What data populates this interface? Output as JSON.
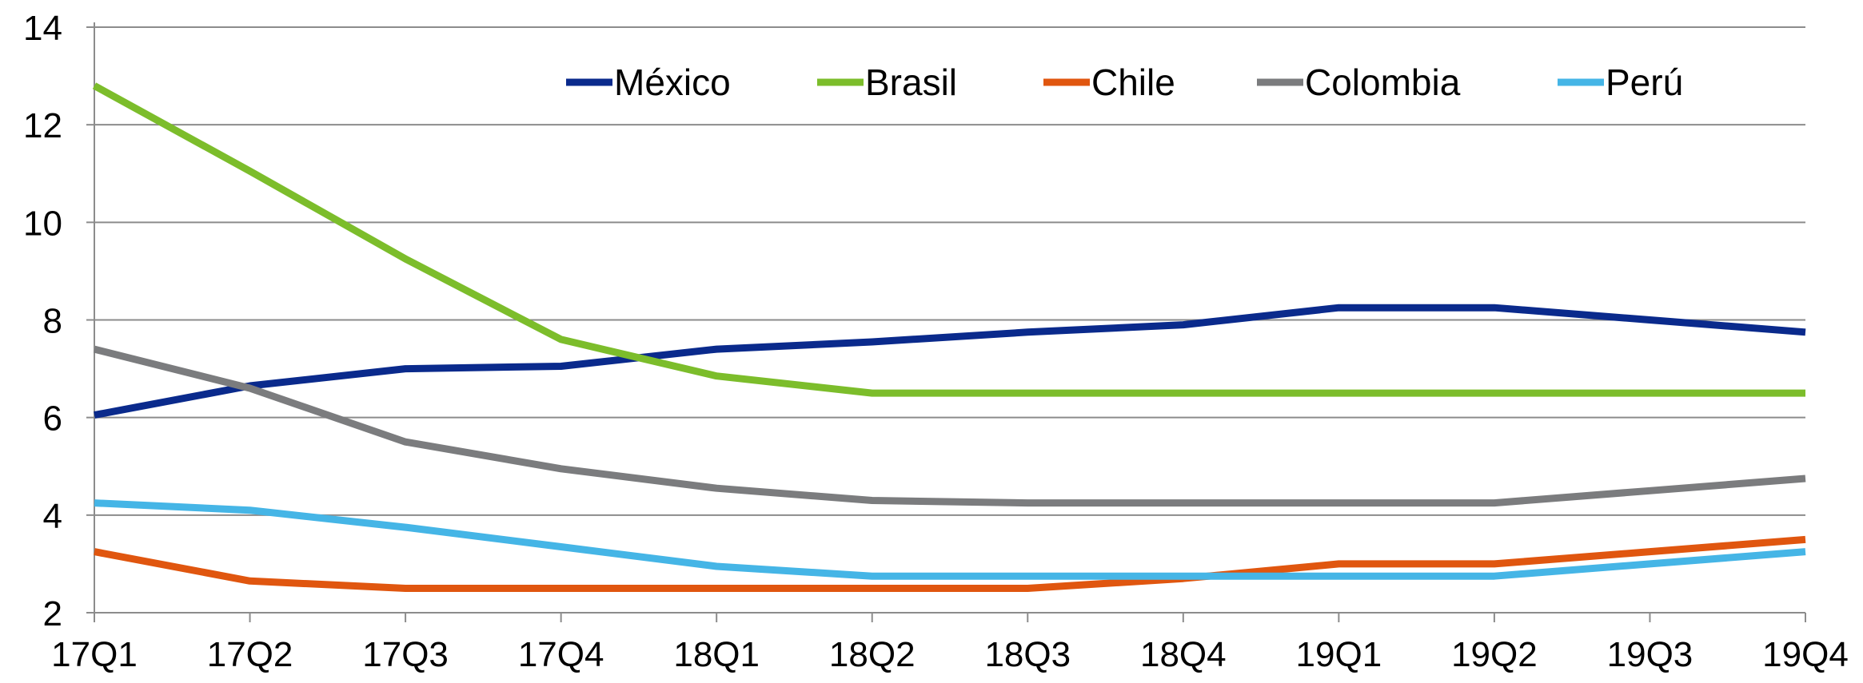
{
  "chart_data": {
    "type": "line",
    "title": "",
    "xlabel": "",
    "ylabel": "",
    "categories": [
      "17Q1",
      "17Q2",
      "17Q3",
      "17Q4",
      "18Q1",
      "18Q2",
      "18Q3",
      "18Q4",
      "19Q1",
      "19Q2",
      "19Q3",
      "19Q4"
    ],
    "ylim": [
      2,
      14
    ],
    "yticks": [
      2,
      4,
      6,
      8,
      10,
      12,
      14
    ],
    "grid": true,
    "legend_position": "top",
    "series": [
      {
        "name": "México",
        "color": "#0a2a8c",
        "values": [
          6.05,
          6.65,
          7.0,
          7.05,
          7.4,
          7.55,
          7.75,
          7.9,
          8.25,
          8.25,
          8.0,
          7.75
        ]
      },
      {
        "name": "Brasil",
        "color": "#7cbd2b",
        "values": [
          12.8,
          11.05,
          9.25,
          7.6,
          6.85,
          6.5,
          6.5,
          6.5,
          6.5,
          6.5,
          6.5,
          6.5
        ]
      },
      {
        "name": "Chile",
        "color": "#e0560f",
        "values": [
          3.25,
          2.65,
          2.5,
          2.5,
          2.5,
          2.5,
          2.5,
          2.7,
          3.0,
          3.0,
          3.25,
          3.5
        ]
      },
      {
        "name": "Colombia",
        "color": "#7b7c7e",
        "values": [
          7.4,
          6.6,
          5.5,
          4.95,
          4.55,
          4.3,
          4.25,
          4.25,
          4.25,
          4.25,
          4.5,
          4.75
        ]
      },
      {
        "name": "Perú",
        "color": "#45b5e6",
        "values": [
          4.25,
          4.1,
          3.75,
          3.35,
          2.95,
          2.75,
          2.75,
          2.75,
          2.75,
          2.75,
          3.0,
          3.25
        ]
      }
    ]
  }
}
